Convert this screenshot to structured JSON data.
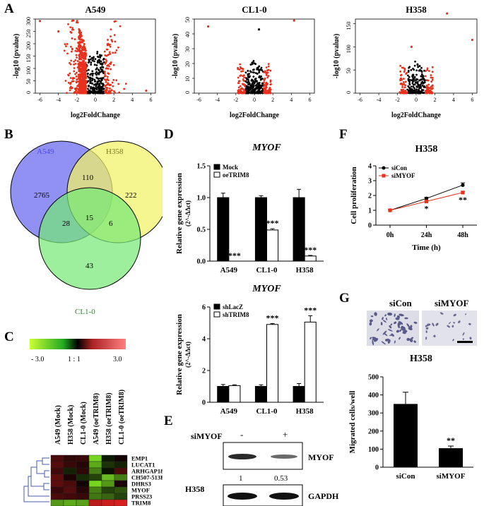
{
  "panels": {
    "A": "A",
    "B": "B",
    "C": "C",
    "D": "D",
    "E": "E",
    "F": "F",
    "G": "G"
  },
  "chart_data": [
    {
      "id": "volcano-a549",
      "type": "scatter",
      "title": "A549",
      "xlabel": "log2FoldChange",
      "ylabel": "-log10 (pvalue)",
      "xlim": [
        -6.5,
        6.5
      ],
      "ylim": [
        0,
        300
      ],
      "x_ticks": [
        "-6",
        "-4",
        "-2",
        "0",
        "2",
        "4",
        "6"
      ],
      "y_ticks": [
        "0",
        "50",
        "100",
        "150",
        "200",
        "250",
        "300"
      ],
      "colors": {
        "sig": "#e8301c",
        "nonsig": "#000000"
      }
    },
    {
      "id": "volcano-cl10",
      "type": "scatter",
      "title": "CL1-0",
      "xlabel": "log2FoldChange",
      "ylabel": "-log10 (pvalue)",
      "xlim": [
        -6.5,
        6.5
      ],
      "ylim": [
        0,
        50
      ],
      "x_ticks": [
        "-6",
        "-4",
        "-2",
        "0",
        "2",
        "4",
        "6"
      ],
      "y_ticks": [
        "0",
        "10",
        "20",
        "30",
        "40",
        "50"
      ],
      "colors": {
        "sig": "#e8301c",
        "nonsig": "#000000"
      }
    },
    {
      "id": "volcano-h358",
      "type": "scatter",
      "title": "H358",
      "xlabel": "log2FoldChange",
      "ylabel": "-log10 (pvalue)",
      "xlim": [
        -6.5,
        6.5
      ],
      "ylim": [
        0,
        160
      ],
      "x_ticks": [
        "-6",
        "-4",
        "-2",
        "0",
        "2",
        "4",
        "6"
      ],
      "y_ticks": [
        "0",
        "50",
        "100",
        "150"
      ],
      "colors": {
        "sig": "#e8301c",
        "nonsig": "#000000"
      }
    },
    {
      "id": "venn",
      "type": "table",
      "sets": [
        "A549",
        "H358",
        "CL1-0"
      ],
      "regions": {
        "a549_only": "2765",
        "a549_h358": "110",
        "h358_only": "222",
        "a549_cl10": "28",
        "all": "15",
        "h358_cl10": "6",
        "cl10_only": "43"
      }
    },
    {
      "id": "heatmap",
      "type": "heatmap",
      "color_scale": {
        "low": "- 3.0",
        "mid": "1 : 1",
        "high": "3.0"
      },
      "columns": [
        "A549 (Mock)",
        "H358 (Mock)",
        "CL1-0 (Mock)",
        "A549 (oeTRIM8)",
        "H358 (oeTRIM8)",
        "CL1-0 (oeTRIM8)"
      ],
      "rows": [
        "EMP1",
        "LUCAT1",
        "ARHGAP18",
        "CH507-513H4",
        "DHRS3",
        "MYOF",
        "PRSS23",
        "TRIM8"
      ],
      "values": [
        [
          0.8,
          0.5,
          0.6,
          -2.5,
          -0.3,
          0.2
        ],
        [
          0.9,
          0.6,
          0.4,
          -2.0,
          -0.6,
          -0.4
        ],
        [
          0.7,
          -0.4,
          0.5,
          -1.5,
          -0.2,
          0.8
        ],
        [
          1.0,
          0.3,
          -0.5,
          -0.8,
          -2.2,
          -1.5
        ],
        [
          1.0,
          0.8,
          0.2,
          -2.5,
          -1.8,
          0.3
        ],
        [
          0.6,
          0.9,
          0.4,
          -1.5,
          -0.8,
          -1.0
        ],
        [
          0.8,
          0.7,
          0.6,
          -1.4,
          -1.2,
          -0.8
        ],
        [
          -1.8,
          -2.0,
          -1.9,
          2.0,
          2.2,
          2.3
        ]
      ]
    },
    {
      "id": "bar-oetrim8",
      "type": "bar",
      "title": "MYOF",
      "ylabel": "Relative gene expression",
      "ylabel2": "(2^-ΔΔct)",
      "ylim": [
        0,
        1.5
      ],
      "y_ticks": [
        "0.0",
        "0.5",
        "1.0",
        "1.5"
      ],
      "categories": [
        "A549",
        "CL1-0",
        "H358"
      ],
      "series": [
        {
          "name": "Mock",
          "values": [
            1.0,
            1.0,
            1.0
          ],
          "err": [
            0.07,
            0.03,
            0.13
          ]
        },
        {
          "name": "oeTRIM8",
          "values": [
            0.0,
            0.49,
            0.08
          ],
          "err": [
            0.0,
            0.02,
            0.01
          ]
        }
      ],
      "stars": [
        "***",
        "***",
        "***"
      ]
    },
    {
      "id": "bar-shtrim8",
      "type": "bar",
      "title": "MYOF",
      "ylabel": "Relative gene expression",
      "ylabel2": "(2^-ΔΔct)",
      "ylim": [
        0,
        6
      ],
      "y_ticks": [
        "0",
        "2",
        "4",
        "6"
      ],
      "categories": [
        "A549",
        "CL1-0",
        "H358"
      ],
      "series": [
        {
          "name": "shLacZ",
          "values": [
            1.0,
            1.0,
            1.0
          ],
          "err": [
            0.12,
            0.1,
            0.18
          ]
        },
        {
          "name": "shTRIM8",
          "values": [
            1.05,
            4.9,
            5.05
          ],
          "err": [
            0.05,
            0.06,
            0.4
          ]
        }
      ],
      "stars": [
        "",
        "***",
        "***"
      ]
    },
    {
      "id": "line-prolif",
      "type": "line",
      "title": "H358",
      "xlabel": "Time (h)",
      "ylabel": "Cell proliferation",
      "ylim": [
        0,
        4
      ],
      "y_ticks": [
        "0",
        "1",
        "2",
        "3",
        "4"
      ],
      "categories": [
        "0h",
        "24h",
        "48h"
      ],
      "series": [
        {
          "name": "siCon",
          "values": [
            1.0,
            1.8,
            2.7
          ],
          "err": [
            0.05,
            0.08,
            0.15
          ],
          "color": "#000000"
        },
        {
          "name": "siMYOF",
          "values": [
            1.0,
            1.6,
            2.2
          ],
          "err": [
            0.05,
            0.06,
            0.08
          ],
          "color": "#e8301c"
        }
      ],
      "stars": [
        "",
        "*",
        "**"
      ]
    },
    {
      "id": "bar-migration",
      "type": "bar",
      "title": "H358",
      "ylabel": "Migrated cells/well",
      "ylim": [
        0,
        500
      ],
      "y_ticks": [
        "0",
        "100",
        "200",
        "300",
        "400",
        "500"
      ],
      "categories": [
        "siCon",
        "siMYOF"
      ],
      "values": [
        350,
        105
      ],
      "err": [
        65,
        12
      ],
      "stars": [
        "",
        "**"
      ]
    }
  ],
  "westernblot": {
    "treatment_label": "siMYOF",
    "minus": "-",
    "plus": "+",
    "cell_line": "H358",
    "band1": "MYOF",
    "band2": "GAPDH",
    "quant": [
      "1",
      "0.53"
    ]
  },
  "migration_images": {
    "left": "siCon",
    "right": "siMYOF"
  }
}
